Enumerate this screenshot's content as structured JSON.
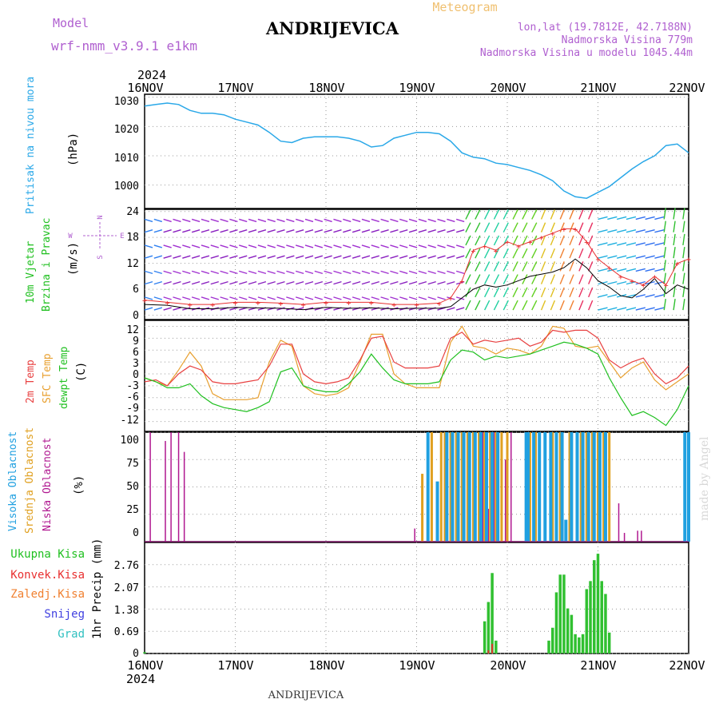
{
  "header": {
    "model_label": "Model",
    "model_name": "wrf-nmm_v3.9.1 e1km",
    "title": "ANDRIJEVICA",
    "meteogram": "Meteogram",
    "coords": "lon,lat (19.7812E, 42.7188N)",
    "altitude": "Nadmorska Visina 779m",
    "model_altitude": "Nadmorska Visina u modelu 1045.44m",
    "year_top": "2024",
    "year_bottom": "2024",
    "footer": "ANDRIJEVICA",
    "watermark": "made by Angel"
  },
  "x_axis": {
    "labels": [
      "16NOV",
      "17NOV",
      "18NOV",
      "19NOV",
      "20NOV",
      "21NOV",
      "22NOV"
    ]
  },
  "panels": {
    "pressure": {
      "label": "Pritisak na nivou mora",
      "unit": "(hPa)",
      "ticks": [
        "1030",
        "1020",
        "1010",
        "1000"
      ]
    },
    "wind": {
      "label1": "10m Vjetar",
      "label2": "Brzina i Pravac",
      "unit": "(m/s)",
      "ticks": [
        "24",
        "18",
        "12",
        "6",
        "0"
      ],
      "compass_n": "N",
      "compass_s": "S",
      "compass_e": "E",
      "compass_w": "W"
    },
    "temp": {
      "label1": "2m Temp",
      "label2": "SFC Temp",
      "label3": "dewpt Temp",
      "unit": "(C)",
      "ticks": [
        "12",
        "9",
        "6",
        "3",
        "0",
        "-3",
        "-6",
        "-9",
        "-12"
      ]
    },
    "cloud": {
      "label1": "Visoka Oblacnost",
      "label2": "Srednja Oblacnost",
      "label3": "Niska Oblacnost",
      "unit": "(%)",
      "ticks": [
        "100",
        "75",
        "50",
        "25",
        "0"
      ]
    },
    "precip": {
      "label1": "Ukupna Kisa",
      "label2": "Konvek.Kisa",
      "label3": "Zaledj.Kisa",
      "label4": "Snijeg",
      "label5": "Grad",
      "unit": "1hr Precip (mm)",
      "ticks": [
        "2.76",
        "2.07",
        "1.38",
        "0.69",
        "0"
      ]
    }
  },
  "colors": {
    "pressure": "#2aa8e8",
    "t2m": "#e84040",
    "sfc": "#e8a030",
    "dewpt": "#20c020",
    "high_cloud": "#20a0e0",
    "mid_cloud": "#e0a020",
    "low_cloud": "#b01890",
    "total_precip": "#30c030",
    "convective": "#e83030",
    "freezing": "#f08030",
    "snow": "#4040e0",
    "hail": "#30c0c0",
    "wind_calm": "#9a20c8",
    "gust": "#e83030",
    "wind_speed": "#000000"
  },
  "chart_data": [
    {
      "type": "line",
      "title": "Pritisak na nivou mora",
      "ylabel": "(hPa)",
      "ylim": [
        992,
        1031
      ],
      "x_unit": "hours from 16NOV 00",
      "series": [
        {
          "name": "Pritisak na nivou mora",
          "x": [
            0,
            3,
            6,
            9,
            12,
            15,
            18,
            21,
            24,
            27,
            30,
            33,
            36,
            39,
            42,
            45,
            48,
            51,
            54,
            57,
            60,
            63,
            66,
            69,
            72,
            75,
            78,
            81,
            84,
            87,
            90,
            93,
            96,
            99,
            102,
            105,
            108,
            111,
            114,
            117,
            120,
            123,
            126,
            129,
            132,
            135,
            138,
            141,
            144
          ],
          "y": [
            1027,
            1027.5,
            1028,
            1027.5,
            1025.5,
            1024.5,
            1024.5,
            1024,
            1022.5,
            1021.5,
            1020.5,
            1018,
            1015,
            1014.5,
            1016,
            1016.5,
            1016.5,
            1016.5,
            1016,
            1015,
            1013,
            1013.5,
            1016,
            1017,
            1018,
            1018,
            1017.5,
            1015,
            1011,
            1009.5,
            1009,
            1007.5,
            1007,
            1006,
            1005,
            1003.5,
            1001.5,
            998,
            996,
            995.5,
            997.5,
            999.5,
            1002.5,
            1005.5,
            1008,
            1010,
            1013.5,
            1014,
            1011
          ]
        }
      ]
    },
    {
      "type": "line",
      "title": "10m Vjetar Brzina i Pravac",
      "ylabel": "(m/s)",
      "ylim": [
        -1,
        24.5
      ],
      "x_unit": "hours from 16NOV 00",
      "series": [
        {
          "name": "wind speed",
          "x": [
            0,
            6,
            12,
            18,
            24,
            30,
            36,
            42,
            48,
            54,
            60,
            66,
            72,
            78,
            81,
            84,
            87,
            90,
            93,
            96,
            99,
            102,
            105,
            108,
            111,
            114,
            117,
            120,
            123,
            126,
            129,
            132,
            135,
            138,
            141,
            144
          ],
          "y": [
            2.5,
            2.3,
            1.5,
            1.5,
            1.8,
            1.7,
            1.6,
            1.3,
            1.8,
            1.6,
            1.7,
            1.5,
            1.6,
            1.6,
            2,
            4,
            6,
            7,
            6.5,
            7,
            8,
            9,
            9.5,
            10,
            11,
            13,
            11,
            8,
            6.5,
            4.5,
            4,
            6,
            8.5,
            5,
            7,
            6
          ]
        },
        {
          "name": "gust",
          "x": [
            0,
            6,
            12,
            18,
            24,
            30,
            36,
            42,
            48,
            54,
            60,
            66,
            72,
            78,
            81,
            84,
            87,
            90,
            93,
            96,
            99,
            102,
            105,
            108,
            111,
            114,
            117,
            120,
            123,
            126,
            129,
            132,
            135,
            138,
            141,
            144
          ],
          "y": [
            3.5,
            3,
            2.5,
            2.5,
            3,
            3,
            2.8,
            2.5,
            3,
            3,
            3,
            2.5,
            2.5,
            2.8,
            4,
            8,
            15,
            16,
            15,
            17,
            16,
            17,
            18,
            19,
            20,
            20,
            17,
            13,
            11,
            9,
            8,
            7,
            9,
            7,
            12,
            13
          ]
        }
      ]
    },
    {
      "type": "line",
      "title": "2m Temp / SFC Temp / dewpt Temp",
      "ylabel": "(C)",
      "ylim": [
        -14.5,
        13.5
      ],
      "x_unit": "hours from 16NOV 00",
      "series": [
        {
          "name": "2m Temp",
          "x": [
            0,
            3,
            6,
            9,
            12,
            15,
            18,
            21,
            24,
            27,
            30,
            33,
            36,
            39,
            42,
            45,
            48,
            51,
            54,
            57,
            60,
            63,
            66,
            69,
            72,
            75,
            78,
            81,
            84,
            87,
            90,
            93,
            96,
            99,
            102,
            105,
            108,
            111,
            114,
            117,
            120,
            123,
            126,
            129,
            132,
            135,
            138,
            141,
            144
          ],
          "y": [
            -2,
            -1.5,
            -3,
            0,
            2,
            1,
            -2,
            -2.5,
            -2.5,
            -2,
            -1.5,
            2,
            7.5,
            7.5,
            0,
            -2,
            -2.5,
            -2,
            -1,
            3.5,
            9,
            9.5,
            3,
            1.5,
            1.5,
            1.5,
            2,
            9,
            10.5,
            7.5,
            8.5,
            8,
            8.5,
            9,
            7,
            8,
            11,
            10.5,
            11,
            11,
            9,
            3.5,
            1.5,
            3,
            4,
            0,
            -2.5,
            -1,
            2
          ]
        },
        {
          "name": "SFC Temp",
          "x": [
            0,
            3,
            6,
            9,
            12,
            15,
            18,
            21,
            24,
            27,
            30,
            33,
            36,
            39,
            42,
            45,
            48,
            51,
            54,
            57,
            60,
            63,
            66,
            69,
            72,
            75,
            78,
            81,
            84,
            87,
            90,
            93,
            96,
            99,
            102,
            105,
            108,
            111,
            114,
            117,
            120,
            123,
            126,
            129,
            132,
            135,
            138,
            141,
            144
          ],
          "y": [
            -1,
            -2,
            -3,
            1,
            5.5,
            2,
            -5,
            -6.5,
            -6.5,
            -6.5,
            -6,
            3,
            8.5,
            7,
            -3,
            -5,
            -5.5,
            -5,
            -3.5,
            3,
            10,
            10,
            0,
            -2.5,
            -3.5,
            -3.5,
            -3.5,
            8,
            12,
            7,
            6.5,
            5,
            6.5,
            6,
            5,
            7,
            12,
            11.5,
            7,
            6.5,
            7,
            3,
            -1,
            1.5,
            3,
            -1.5,
            -4,
            -2,
            0
          ]
        },
        {
          "name": "dewpt Temp",
          "x": [
            0,
            3,
            6,
            9,
            12,
            15,
            18,
            21,
            24,
            27,
            30,
            33,
            36,
            39,
            42,
            45,
            48,
            51,
            54,
            57,
            60,
            63,
            66,
            69,
            72,
            75,
            78,
            81,
            84,
            87,
            90,
            93,
            96,
            99,
            102,
            105,
            108,
            111,
            114,
            117,
            120,
            123,
            126,
            129,
            132,
            135,
            138,
            141,
            144
          ],
          "y": [
            -1,
            -2,
            -3.5,
            -3.5,
            -2.5,
            -5.5,
            -7.5,
            -8.5,
            -9,
            -9.5,
            -8.5,
            -7,
            0.5,
            1.5,
            -3,
            -4,
            -4.5,
            -4.5,
            -2.5,
            0.5,
            5,
            1.5,
            -1.5,
            -2.5,
            -2.5,
            -2.5,
            -2,
            3.5,
            6,
            5.5,
            3.5,
            4.5,
            4,
            4.5,
            5,
            6,
            7,
            8,
            7.5,
            6.5,
            5,
            -1,
            -6,
            -10.5,
            -9.5,
            -11,
            -13,
            -9,
            -3
          ]
        }
      ]
    },
    {
      "type": "bar",
      "title": "Oblacnost",
      "ylabel": "(%)",
      "ylim": [
        0,
        100
      ],
      "x_unit": "hours from 16NOV 00",
      "series": [
        {
          "name": "Niska Oblacnost",
          "x": [
            1.5,
            5.5,
            7,
            9,
            10.5,
            71.5,
            89.5,
            91,
            92.5,
            95.5,
            97,
            125.5,
            127,
            130.5,
            131.5
          ],
          "y": [
            100,
            92,
            100,
            100,
            82,
            12,
            100,
            30,
            100,
            75,
            100,
            35,
            8,
            10,
            10
          ]
        },
        {
          "name": "Srednja Oblacnost",
          "x": [
            73.5,
            76,
            78.5,
            79.5,
            81,
            82.5,
            84,
            85.5,
            87,
            88.5,
            90,
            91.5,
            93,
            94.5,
            96,
            102,
            103.5,
            108,
            110,
            112.5,
            115.5,
            117,
            118.5,
            120,
            121.5,
            123
          ],
          "y": [
            62,
            100,
            100,
            100,
            100,
            100,
            100,
            100,
            100,
            100,
            100,
            100,
            100,
            100,
            100,
            100,
            100,
            100,
            100,
            100,
            100,
            100,
            100,
            100,
            100,
            100
          ]
        },
        {
          "name": "Visoka Oblacnost",
          "x": [
            75,
            77.5,
            80,
            81.5,
            83,
            84.5,
            86,
            87.5,
            89,
            90.5,
            92,
            93.5,
            101,
            101.5,
            103,
            104.5,
            106,
            107.5,
            109,
            110.5,
            111.5,
            113,
            114.5,
            116,
            117.5,
            119,
            120.5,
            122,
            143,
            144
          ],
          "y": [
            100,
            55,
            100,
            100,
            100,
            100,
            100,
            100,
            100,
            100,
            100,
            100,
            100,
            100,
            100,
            100,
            100,
            100,
            100,
            100,
            20,
            100,
            100,
            100,
            100,
            100,
            100,
            100,
            100,
            100
          ]
        }
      ]
    },
    {
      "type": "bar",
      "title": "1hr Precip",
      "ylabel": "1hr Precip (mm)",
      "ylim": [
        0,
        3.45
      ],
      "x_unit": "hours from 16NOV 00",
      "series": [
        {
          "name": "Ukupna Kisa",
          "x": [
            0,
            90,
            91,
            92,
            93,
            107,
            108,
            109,
            110,
            111,
            112,
            113,
            114,
            115,
            116,
            117,
            118,
            119,
            120,
            121,
            122,
            123
          ],
          "y": [
            0.04,
            1.0,
            1.6,
            2.5,
            0.4,
            0.4,
            0.8,
            1.9,
            2.45,
            2.45,
            1.4,
            1.2,
            0.6,
            0.5,
            0.6,
            2.0,
            2.25,
            2.9,
            3.1,
            2.25,
            1.85,
            0.65
          ]
        },
        {
          "name": "Konvek.Kisa",
          "x": [
            91,
            92
          ],
          "y": [
            0.1,
            0.3
          ]
        }
      ]
    }
  ]
}
